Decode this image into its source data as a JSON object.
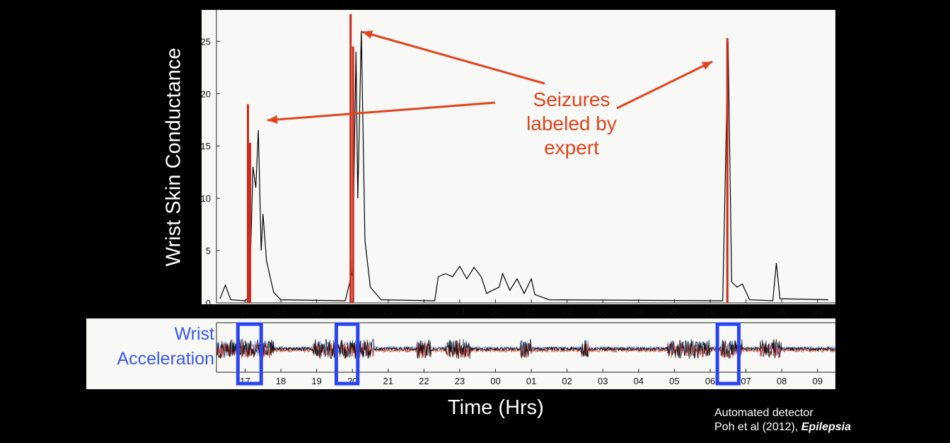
{
  "chart_data": [
    {
      "type": "line",
      "ylabel": "Wrist Skin Conductance",
      "xlabel": "Time (Hrs)",
      "xticklabels": [
        "17",
        "18",
        "19",
        "20",
        "21",
        "22",
        "23",
        "00",
        "01",
        "02",
        "03",
        "04",
        "05",
        "06",
        "07",
        "08",
        "09"
      ],
      "yticks": [
        0,
        5,
        10,
        15,
        20,
        25
      ],
      "ylim": [
        0,
        28
      ],
      "grid": false,
      "series": [
        {
          "color": "#000000",
          "points": [
            [
              16.3,
              0.4
            ],
            [
              16.45,
              1.7
            ],
            [
              16.6,
              0.3
            ],
            [
              17.0,
              0.2
            ],
            [
              17.1,
              0.5
            ],
            [
              17.15,
              4
            ],
            [
              17.22,
              13
            ],
            [
              17.3,
              11
            ],
            [
              17.37,
              16.5
            ],
            [
              17.45,
              5
            ],
            [
              17.5,
              8.5
            ],
            [
              17.6,
              4
            ],
            [
              17.8,
              1
            ],
            [
              18.0,
              0.3
            ],
            [
              19.8,
              0.2
            ],
            [
              20.0,
              3
            ],
            [
              20.1,
              24
            ],
            [
              20.15,
              10
            ],
            [
              20.25,
              26
            ],
            [
              20.35,
              6
            ],
            [
              20.5,
              1.5
            ],
            [
              20.8,
              0.3
            ],
            [
              22.3,
              0.2
            ],
            [
              22.4,
              2.5
            ],
            [
              22.6,
              2.8
            ],
            [
              22.8,
              2.5
            ],
            [
              23.0,
              3.5
            ],
            [
              23.2,
              2.3
            ],
            [
              23.4,
              3.4
            ],
            [
              23.6,
              2.5
            ],
            [
              23.75,
              0.9
            ],
            [
              23.8,
              1
            ],
            [
              24.1,
              1.5
            ],
            [
              24.2,
              2.8
            ],
            [
              24.4,
              1.2
            ],
            [
              24.6,
              2.3
            ],
            [
              24.8,
              0.9
            ],
            [
              25.0,
              2.3
            ],
            [
              25.1,
              0.8
            ],
            [
              25.5,
              0.3
            ],
            [
              30.35,
              0.2
            ],
            [
              30.5,
              25
            ],
            [
              30.6,
              2
            ],
            [
              30.75,
              1.5
            ],
            [
              30.9,
              1.8
            ],
            [
              31.1,
              0.3
            ],
            [
              31.75,
              0.2
            ],
            [
              31.85,
              3.8
            ],
            [
              31.95,
              0.4
            ],
            [
              33.3,
              0.3
            ]
          ]
        },
        {
          "name": "Seizures labeled by expert",
          "color": "#cc2a1c",
          "points": [
            [
              17.08,
              0
            ],
            [
              17.08,
              19
            ],
            [
              17.14,
              0
            ],
            [
              17.14,
              15.3
            ],
            [
              19.95,
              0
            ],
            [
              19.95,
              27.6
            ],
            [
              20.02,
              0
            ],
            [
              20.02,
              24.5
            ],
            [
              30.48,
              0
            ],
            [
              30.48,
              25.3
            ]
          ]
        }
      ],
      "annotation": {
        "lines": [
          "Seizures",
          "labeled by",
          "expert"
        ],
        "color": "#e0441e"
      }
    },
    {
      "type": "line",
      "ylabel_lines": [
        "Wrist",
        "Acceleration"
      ],
      "ylabel_color": "#3a57e8",
      "xticklabels": [
        "17",
        "18",
        "19",
        "20",
        "21",
        "22",
        "23",
        "00",
        "01",
        "02",
        "03",
        "04",
        "05",
        "06",
        "07",
        "08",
        "09"
      ],
      "highlight_color": "#2a45f0",
      "highlights": [
        [
          16.8,
          17.45
        ],
        [
          19.55,
          20.15
        ],
        [
          30.2,
          30.8
        ]
      ]
    }
  ],
  "credit": {
    "line1": "Automated detector",
    "line2": "Poh et al (2012), ",
    "journal": "Epilepsia"
  }
}
